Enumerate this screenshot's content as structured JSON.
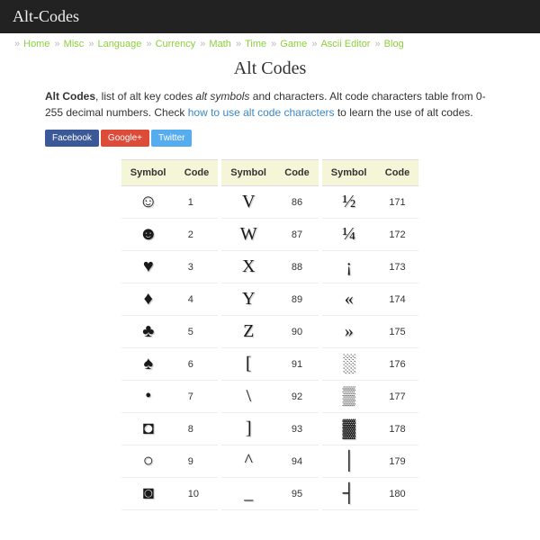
{
  "header": {
    "title": "Alt-Codes"
  },
  "nav": {
    "sep": "»",
    "link_color": "#8ccf3c",
    "items": [
      "Home",
      "Misc",
      "Language",
      "Currency",
      "Math",
      "Time",
      "Game",
      "Ascii Editor",
      "Blog"
    ]
  },
  "page": {
    "heading": "Alt Codes",
    "intro_bold": "Alt Codes",
    "intro_mid1": ", list of alt key codes ",
    "intro_italic": "alt symbols",
    "intro_mid2": " and characters. Alt code characters table from 0-255 decimal numbers. Check ",
    "intro_link": "how to use alt code characters",
    "intro_end": " to learn the use of alt codes.",
    "link_color": "#3a87c4"
  },
  "share": {
    "items": [
      {
        "label": "Facebook",
        "bg": "#3b5998"
      },
      {
        "label": "Google+",
        "bg": "#dd4b39"
      },
      {
        "label": "Twitter",
        "bg": "#55acee"
      }
    ]
  },
  "tables": {
    "header_bg": "#f5f5d8",
    "cols": [
      {
        "header_symbol": "Symbol",
        "header_code": "Code",
        "rows": [
          {
            "sym": "☺",
            "code": "1"
          },
          {
            "sym": "☻",
            "code": "2"
          },
          {
            "sym": "♥",
            "code": "3"
          },
          {
            "sym": "♦",
            "code": "4"
          },
          {
            "sym": "♣",
            "code": "5"
          },
          {
            "sym": "♠",
            "code": "6"
          },
          {
            "sym": "•",
            "code": "7"
          },
          {
            "sym": "◘",
            "code": "8"
          },
          {
            "sym": "○",
            "code": "9"
          },
          {
            "sym": "◙",
            "code": "10"
          }
        ]
      },
      {
        "header_symbol": "Symbol",
        "header_code": "Code",
        "rows": [
          {
            "sym": "V",
            "code": "86"
          },
          {
            "sym": "W",
            "code": "87"
          },
          {
            "sym": "X",
            "code": "88"
          },
          {
            "sym": "Y",
            "code": "89"
          },
          {
            "sym": "Z",
            "code": "90"
          },
          {
            "sym": "[",
            "code": "91"
          },
          {
            "sym": "\\",
            "code": "92"
          },
          {
            "sym": "]",
            "code": "93"
          },
          {
            "sym": "^",
            "code": "94"
          },
          {
            "sym": "_",
            "code": "95"
          }
        ]
      },
      {
        "header_symbol": "Symbol",
        "header_code": "Code",
        "rows": [
          {
            "sym": "½",
            "code": "171"
          },
          {
            "sym": "¼",
            "code": "172"
          },
          {
            "sym": "¡",
            "code": "173"
          },
          {
            "sym": "«",
            "code": "174"
          },
          {
            "sym": "»",
            "code": "175"
          },
          {
            "sym": "░",
            "code": "176"
          },
          {
            "sym": "▒",
            "code": "177"
          },
          {
            "sym": "▓",
            "code": "178"
          },
          {
            "sym": "│",
            "code": "179"
          },
          {
            "sym": "┤",
            "code": "180"
          }
        ]
      }
    ]
  }
}
